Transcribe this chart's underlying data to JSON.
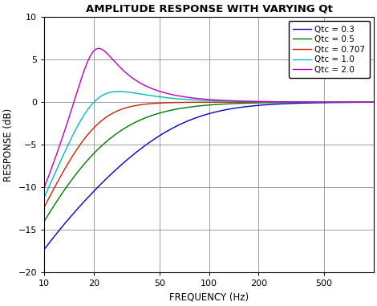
{
  "title": "AMPLITUDE RESPONSE WITH VARYING Qt",
  "xlabel": "FREQUENCY (Hz)",
  "ylabel": "RESPONSE (dB)",
  "xlim": [
    10,
    1000
  ],
  "ylim": [
    -20,
    10
  ],
  "yticks": [
    -20,
    -15,
    -10,
    -5,
    0,
    5,
    10
  ],
  "xticks": [
    10,
    20,
    50,
    100,
    200,
    500
  ],
  "xtick_labels": [
    "10",
    "20",
    "50",
    "100",
    "200",
    "500"
  ],
  "fc": 20,
  "Qt_values": [
    0.3,
    0.5,
    0.707,
    1.0,
    2.0
  ],
  "Qt_labels": [
    "Qtc = 0.3",
    "Qtc = 0.5",
    "Qtc = 0.707",
    "Qtc = 1.0",
    "Qtc = 2.0"
  ],
  "colors": [
    "#0000CC",
    "#007700",
    "#CC2200",
    "#00BBBB",
    "#BB00BB"
  ],
  "background_color": "#ffffff",
  "grid_color": "#909090",
  "figsize": [
    4.7,
    3.81
  ],
  "dpi": 100,
  "title_fontsize": 9.5,
  "axis_label_fontsize": 8.5,
  "tick_fontsize": 8,
  "legend_fontsize": 7.5
}
